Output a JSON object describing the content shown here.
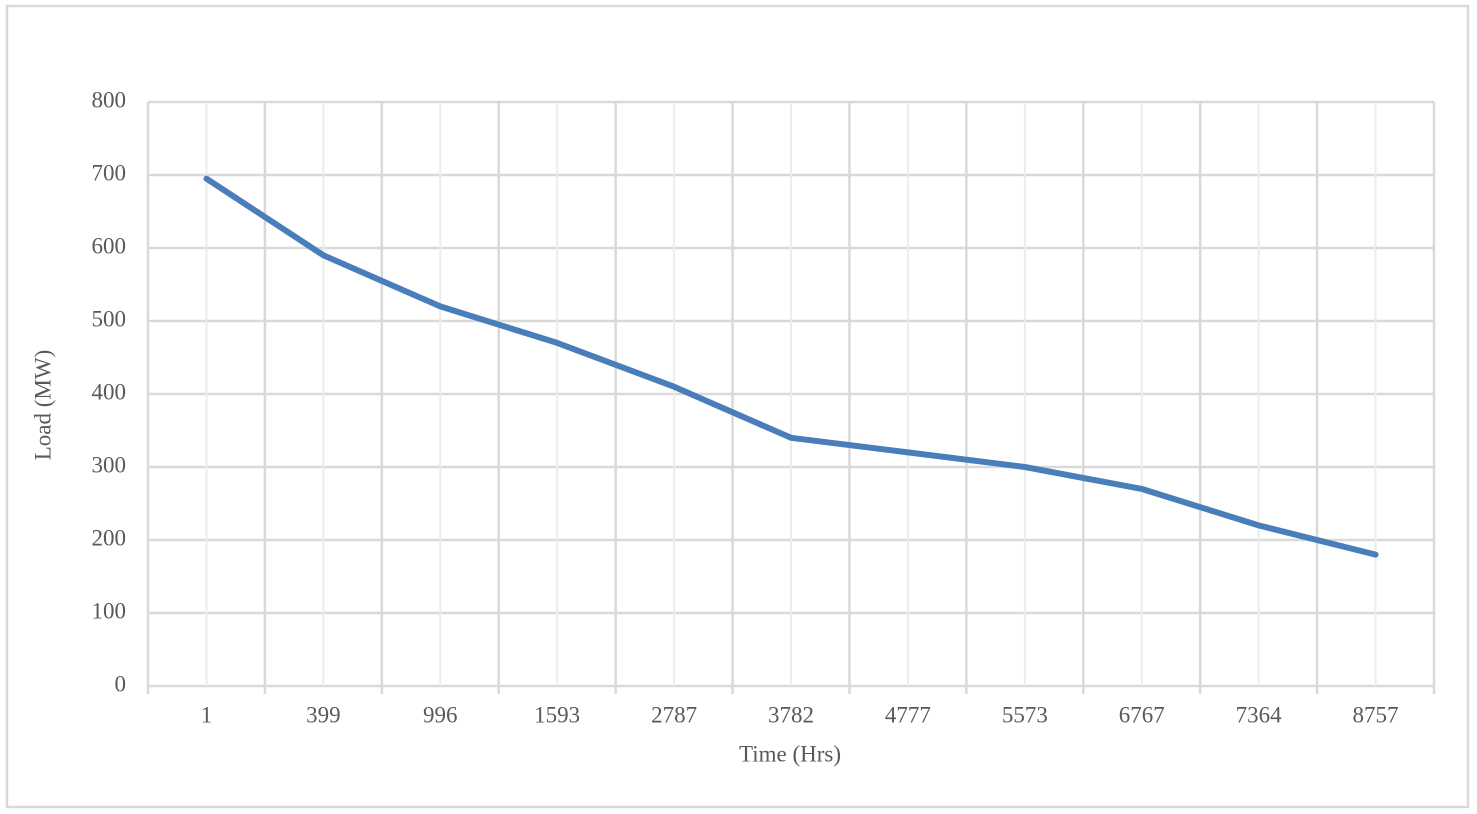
{
  "chart_data": {
    "type": "line",
    "x_label": "Time (Hrs)",
    "y_label": "Load (MW)",
    "categories": [
      "1",
      "399",
      "996",
      "1593",
      "2787",
      "3782",
      "4777",
      "5573",
      "6767",
      "7364",
      "8757"
    ],
    "series": [
      {
        "name": "Load",
        "color": "#4a7ebb",
        "values": [
          695,
          590,
          520,
          470,
          410,
          340,
          320,
          300,
          270,
          220,
          180
        ]
      }
    ],
    "ylim": [
      0,
      800
    ],
    "yticks": [
      0,
      100,
      200,
      300,
      400,
      500,
      600,
      700,
      800
    ],
    "grid": true
  }
}
